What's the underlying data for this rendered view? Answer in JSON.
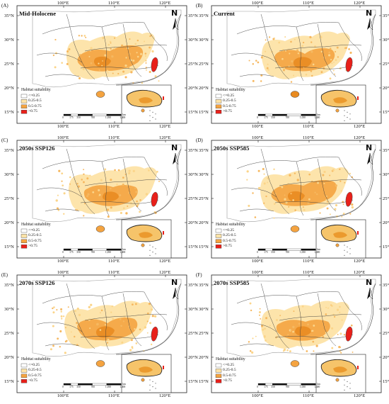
{
  "figure": {
    "panels": [
      {
        "letter": "(A)",
        "title": "Mid-Holocene"
      },
      {
        "letter": "(B)",
        "title": "Current"
      },
      {
        "letter": "(C)",
        "title": "2050s SSP126"
      },
      {
        "letter": "(D)",
        "title": "2050s SSP585"
      },
      {
        "letter": "(E)",
        "title": "2070s SSP126"
      },
      {
        "letter": "(F)",
        "title": "2070s SSP585"
      }
    ],
    "lon_labels": [
      "100°E",
      "110°E",
      "120°E"
    ],
    "lat_labels_left": [
      "35°N",
      "30°N",
      "25°N",
      "20°N",
      "15°N"
    ],
    "lat_labels_right": [
      "35°N",
      "30°N",
      "25°N",
      "20°N",
      "15°N"
    ],
    "north_arrow": "N",
    "legend": {
      "title": "Habitat suitability",
      "classes": [
        {
          "label": "<=0.25",
          "color": "#ffffff"
        },
        {
          "label": "0.25-0.5",
          "color": "#fde3a7"
        },
        {
          "label": "0.5-0.75",
          "color": "#f4a340"
        },
        {
          "label": ">0.75",
          "color": "#e8201a"
        }
      ]
    },
    "scale_bar": {
      "ticks": [
        "0",
        "175",
        "350",
        "700",
        "1,050",
        "1,400"
      ],
      "unit": "km"
    }
  }
}
